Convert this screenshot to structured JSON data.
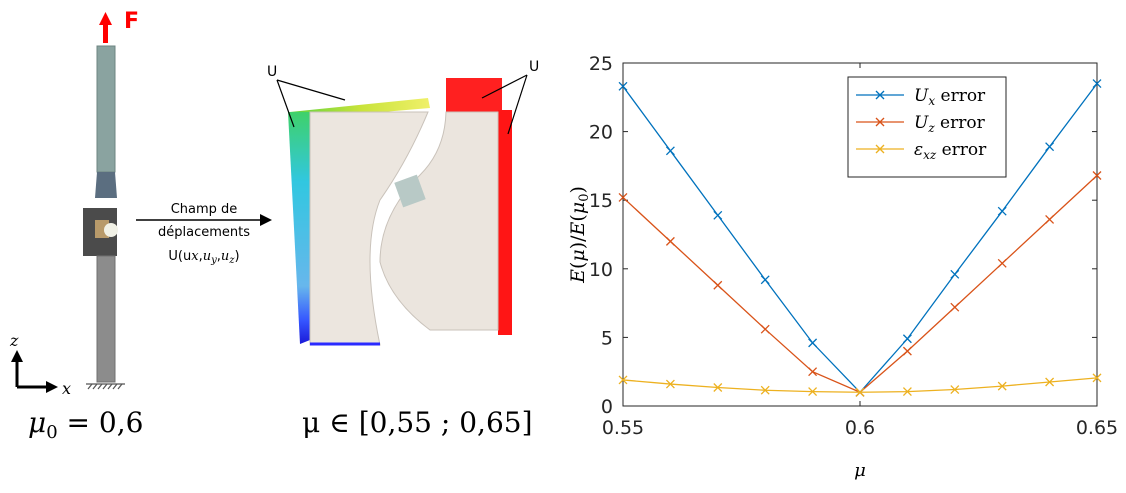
{
  "illustration": {
    "force_label": "F",
    "arrow_caption_line1": "Champ de",
    "arrow_caption_line2": "déplacements",
    "arrow_caption_line3": "U(u",
    "sub_x": "x",
    "sub_y": "y",
    "sub_z": "z",
    "comma": ",",
    "paren_close": ")",
    "u_label_left": "U",
    "u_label_right": "U",
    "axis_z": "z",
    "axis_x": "x",
    "mu0_caption": "μ",
    "mu0_sub": "0",
    "mu0_value": " = 0,6",
    "mu_caption": "μ ∈ [0,55 ; 0,65]"
  },
  "chart_data": {
    "type": "line",
    "xlabel": "μ",
    "ylabel": "E(μ)/E(μ0)",
    "xlim": [
      0.55,
      0.65
    ],
    "ylim": [
      0,
      25
    ],
    "x_ticks": [
      0.55,
      0.6,
      0.65
    ],
    "x_tick_labels": [
      "0.55",
      "0.6",
      "0.65"
    ],
    "y_ticks": [
      0,
      5,
      10,
      15,
      20,
      25
    ],
    "y_tick_labels": [
      "0",
      "5",
      "10",
      "15",
      "20",
      "25"
    ],
    "grid": false,
    "legend_position": "top-right",
    "x": [
      0.55,
      0.56,
      0.57,
      0.58,
      0.59,
      0.6,
      0.61,
      0.62,
      0.63,
      0.64,
      0.65
    ],
    "series": [
      {
        "name": "U_x error",
        "legend_main": "U",
        "legend_sub": "x",
        "legend_tail": " error",
        "color": "#0072BD",
        "values": [
          23.3,
          18.6,
          13.9,
          9.2,
          4.6,
          1.0,
          4.9,
          9.6,
          14.2,
          18.9,
          23.5
        ]
      },
      {
        "name": "U_z error",
        "legend_main": "U",
        "legend_sub": "z",
        "legend_tail": " error",
        "color": "#D95319",
        "values": [
          15.2,
          12.0,
          8.8,
          5.6,
          2.5,
          1.0,
          4.0,
          7.2,
          10.4,
          13.6,
          16.8
        ]
      },
      {
        "name": "ε_xz error",
        "legend_main": "ε",
        "legend_sub": "xz",
        "legend_tail": " error",
        "color": "#EDB120",
        "values": [
          1.9,
          1.6,
          1.35,
          1.15,
          1.05,
          1.0,
          1.05,
          1.2,
          1.45,
          1.75,
          2.05
        ]
      }
    ]
  }
}
